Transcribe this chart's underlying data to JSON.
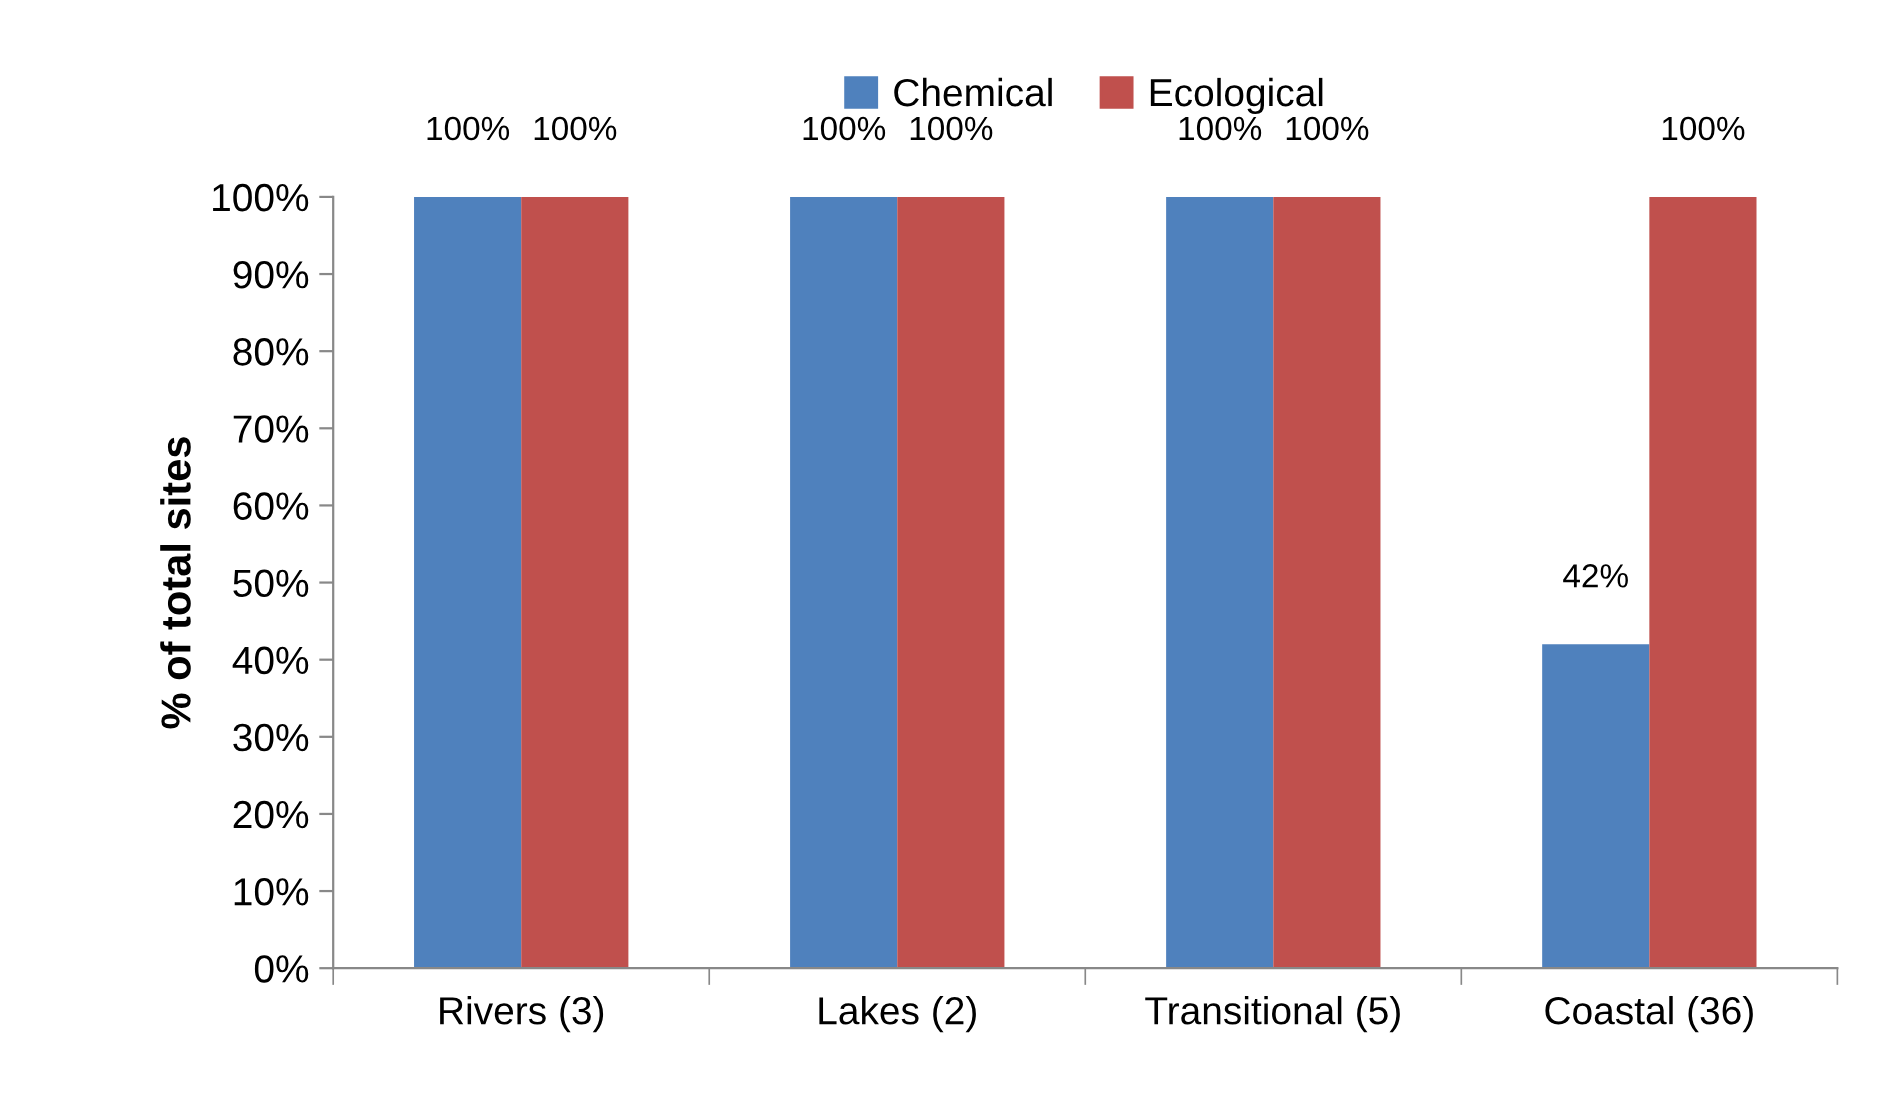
{
  "chart_data": {
    "type": "bar",
    "ylabel": "% of total sites",
    "categories": [
      "Rivers (3)",
      "Lakes (2)",
      "Transitional (5)",
      "Coastal (36)"
    ],
    "series": [
      {
        "name": "Chemical",
        "color": "#4f81bd",
        "values": [
          100,
          100,
          100,
          42
        ],
        "value_labels": [
          "100%",
          "100%",
          "100%",
          "42%"
        ]
      },
      {
        "name": "Ecological",
        "color": "#c0504d",
        "values": [
          100,
          100,
          100,
          100
        ],
        "value_labels": [
          "100%",
          "100%",
          "100%",
          "100%"
        ]
      }
    ],
    "ylim": [
      0,
      100
    ],
    "yticks": [
      {
        "value": 0,
        "label": "0%"
      },
      {
        "value": 10,
        "label": "10%"
      },
      {
        "value": 20,
        "label": "20%"
      },
      {
        "value": 30,
        "label": "30%"
      },
      {
        "value": 40,
        "label": "40%"
      },
      {
        "value": 50,
        "label": "50%"
      },
      {
        "value": 60,
        "label": "60%"
      },
      {
        "value": 70,
        "label": "70%"
      },
      {
        "value": 80,
        "label": "80%"
      },
      {
        "value": 90,
        "label": "90%"
      },
      {
        "value": 100,
        "label": "100%"
      }
    ],
    "grid": false,
    "legend": "top"
  }
}
